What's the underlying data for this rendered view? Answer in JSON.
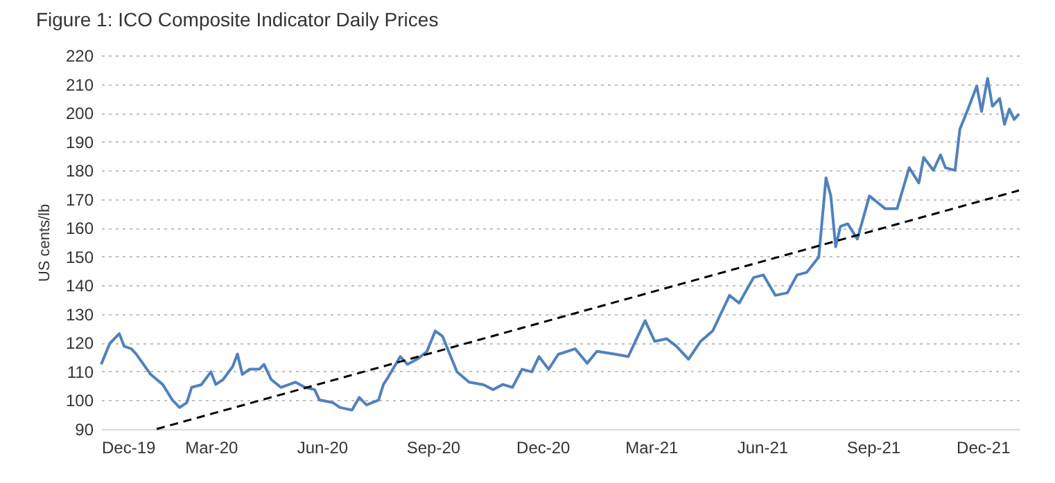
{
  "chart_data": {
    "type": "line",
    "title": "Figure 1: ICO Composite Indicator Daily Prices",
    "ylabel": "US cents/lb",
    "xlim": [
      "2019-12-01",
      "2021-12-31"
    ],
    "xticks": [
      {
        "value": "2019-12-01",
        "label": "Dec-19"
      },
      {
        "value": "2020-03-01",
        "label": "Mar-20"
      },
      {
        "value": "2020-06-01",
        "label": "Jun-20"
      },
      {
        "value": "2020-09-01",
        "label": "Sep-20"
      },
      {
        "value": "2020-12-01",
        "label": "Dec-20"
      },
      {
        "value": "2021-03-01",
        "label": "Mar-21"
      },
      {
        "value": "2021-06-01",
        "label": "Jun-21"
      },
      {
        "value": "2021-09-01",
        "label": "Sep-21"
      },
      {
        "value": "2021-12-01",
        "label": "Dec-21"
      }
    ],
    "ylim": [
      90,
      220
    ],
    "yticks": [
      90,
      100,
      110,
      120,
      130,
      140,
      150,
      160,
      170,
      180,
      190,
      200,
      210,
      220
    ],
    "grid": "y",
    "marker": "none",
    "series": [
      {
        "color": "#4f81bd",
        "line_style": "solid",
        "x": [
          "2019-12-01",
          "2019-12-08",
          "2019-12-16",
          "2019-12-20",
          "2019-12-26",
          "2019-12-30",
          "2020-01-11",
          "2020-01-21",
          "2020-01-29",
          "2020-02-04",
          "2020-02-10",
          "2020-02-14",
          "2020-02-22",
          "2020-03-01",
          "2020-03-05",
          "2020-03-11",
          "2020-03-19",
          "2020-03-23",
          "2020-03-27",
          "2020-04-02",
          "2020-04-10",
          "2020-04-14",
          "2020-04-20",
          "2020-04-28",
          "2020-05-10",
          "2020-05-18",
          "2020-05-26",
          "2020-05-30",
          "2020-06-10",
          "2020-06-16",
          "2020-06-26",
          "2020-07-02",
          "2020-07-08",
          "2020-07-18",
          "2020-07-22",
          "2020-07-26",
          "2020-08-05",
          "2020-08-11",
          "2020-08-19",
          "2020-08-27",
          "2020-09-03",
          "2020-09-09",
          "2020-09-15",
          "2020-09-21",
          "2020-10-01",
          "2020-10-13",
          "2020-10-21",
          "2020-10-29",
          "2020-11-06",
          "2020-11-14",
          "2020-11-22",
          "2020-11-28",
          "2020-12-06",
          "2020-12-14",
          "2020-12-28",
          "2021-01-07",
          "2021-01-15",
          "2021-01-29",
          "2021-02-10",
          "2021-02-24",
          "2021-03-04",
          "2021-03-14",
          "2021-03-22",
          "2021-04-01",
          "2021-04-11",
          "2021-04-21",
          "2021-04-27",
          "2021-05-05",
          "2021-05-13",
          "2021-05-25",
          "2021-06-02",
          "2021-06-12",
          "2021-06-22",
          "2021-06-30",
          "2021-07-08",
          "2021-07-18",
          "2021-07-24",
          "2021-07-28",
          "2021-08-01",
          "2021-08-05",
          "2021-08-11",
          "2021-08-19",
          "2021-08-29",
          "2021-09-11",
          "2021-09-21",
          "2021-10-01",
          "2021-10-09",
          "2021-10-13",
          "2021-10-21",
          "2021-10-27",
          "2021-10-31",
          "2021-11-08",
          "2021-11-12",
          "2021-11-18",
          "2021-11-26",
          "2021-11-30",
          "2021-12-05",
          "2021-12-09",
          "2021-12-15",
          "2021-12-19",
          "2021-12-23",
          "2021-12-27",
          "2021-12-31"
        ],
        "values": [
          112.5,
          119.7,
          123.2,
          118.8,
          117.9,
          116.1,
          109,
          105.5,
          100.1,
          97.5,
          99.2,
          104.5,
          105.4,
          109.9,
          105.5,
          107.2,
          111.7,
          116.1,
          109,
          110.8,
          110.8,
          112.5,
          107.2,
          104.5,
          106.3,
          104.5,
          103.7,
          100.1,
          99.2,
          97.5,
          96.6,
          101,
          98.4,
          100.1,
          105.5,
          108.1,
          115.2,
          112.5,
          114.3,
          116.9,
          124.1,
          122.3,
          116.1,
          109.9,
          106.3,
          105.4,
          103.7,
          105.5,
          104.5,
          110.8,
          109.9,
          115.2,
          110.8,
          116,
          117.9,
          112.9,
          117,
          116.1,
          115.2,
          127.7,
          120.5,
          121.4,
          118.8,
          114.3,
          120.5,
          124.1,
          129.4,
          136.5,
          133.8,
          142.7,
          143.6,
          136.5,
          137.4,
          143.6,
          144.5,
          149.8,
          177.4,
          171.1,
          153.4,
          160.5,
          161.4,
          156.1,
          171.1,
          166.7,
          166.7,
          180.9,
          175.6,
          184.5,
          180,
          185.4,
          180.9,
          180,
          194.3,
          200.5,
          209.3,
          200.5,
          212,
          202.3,
          205,
          196,
          201.3,
          197.7,
          199.6
        ]
      },
      {
        "color": "#000000",
        "line_style": "dashed",
        "x": [
          "2020-01-16",
          "2021-12-31"
        ],
        "values": [
          90,
          173
        ]
      }
    ]
  }
}
